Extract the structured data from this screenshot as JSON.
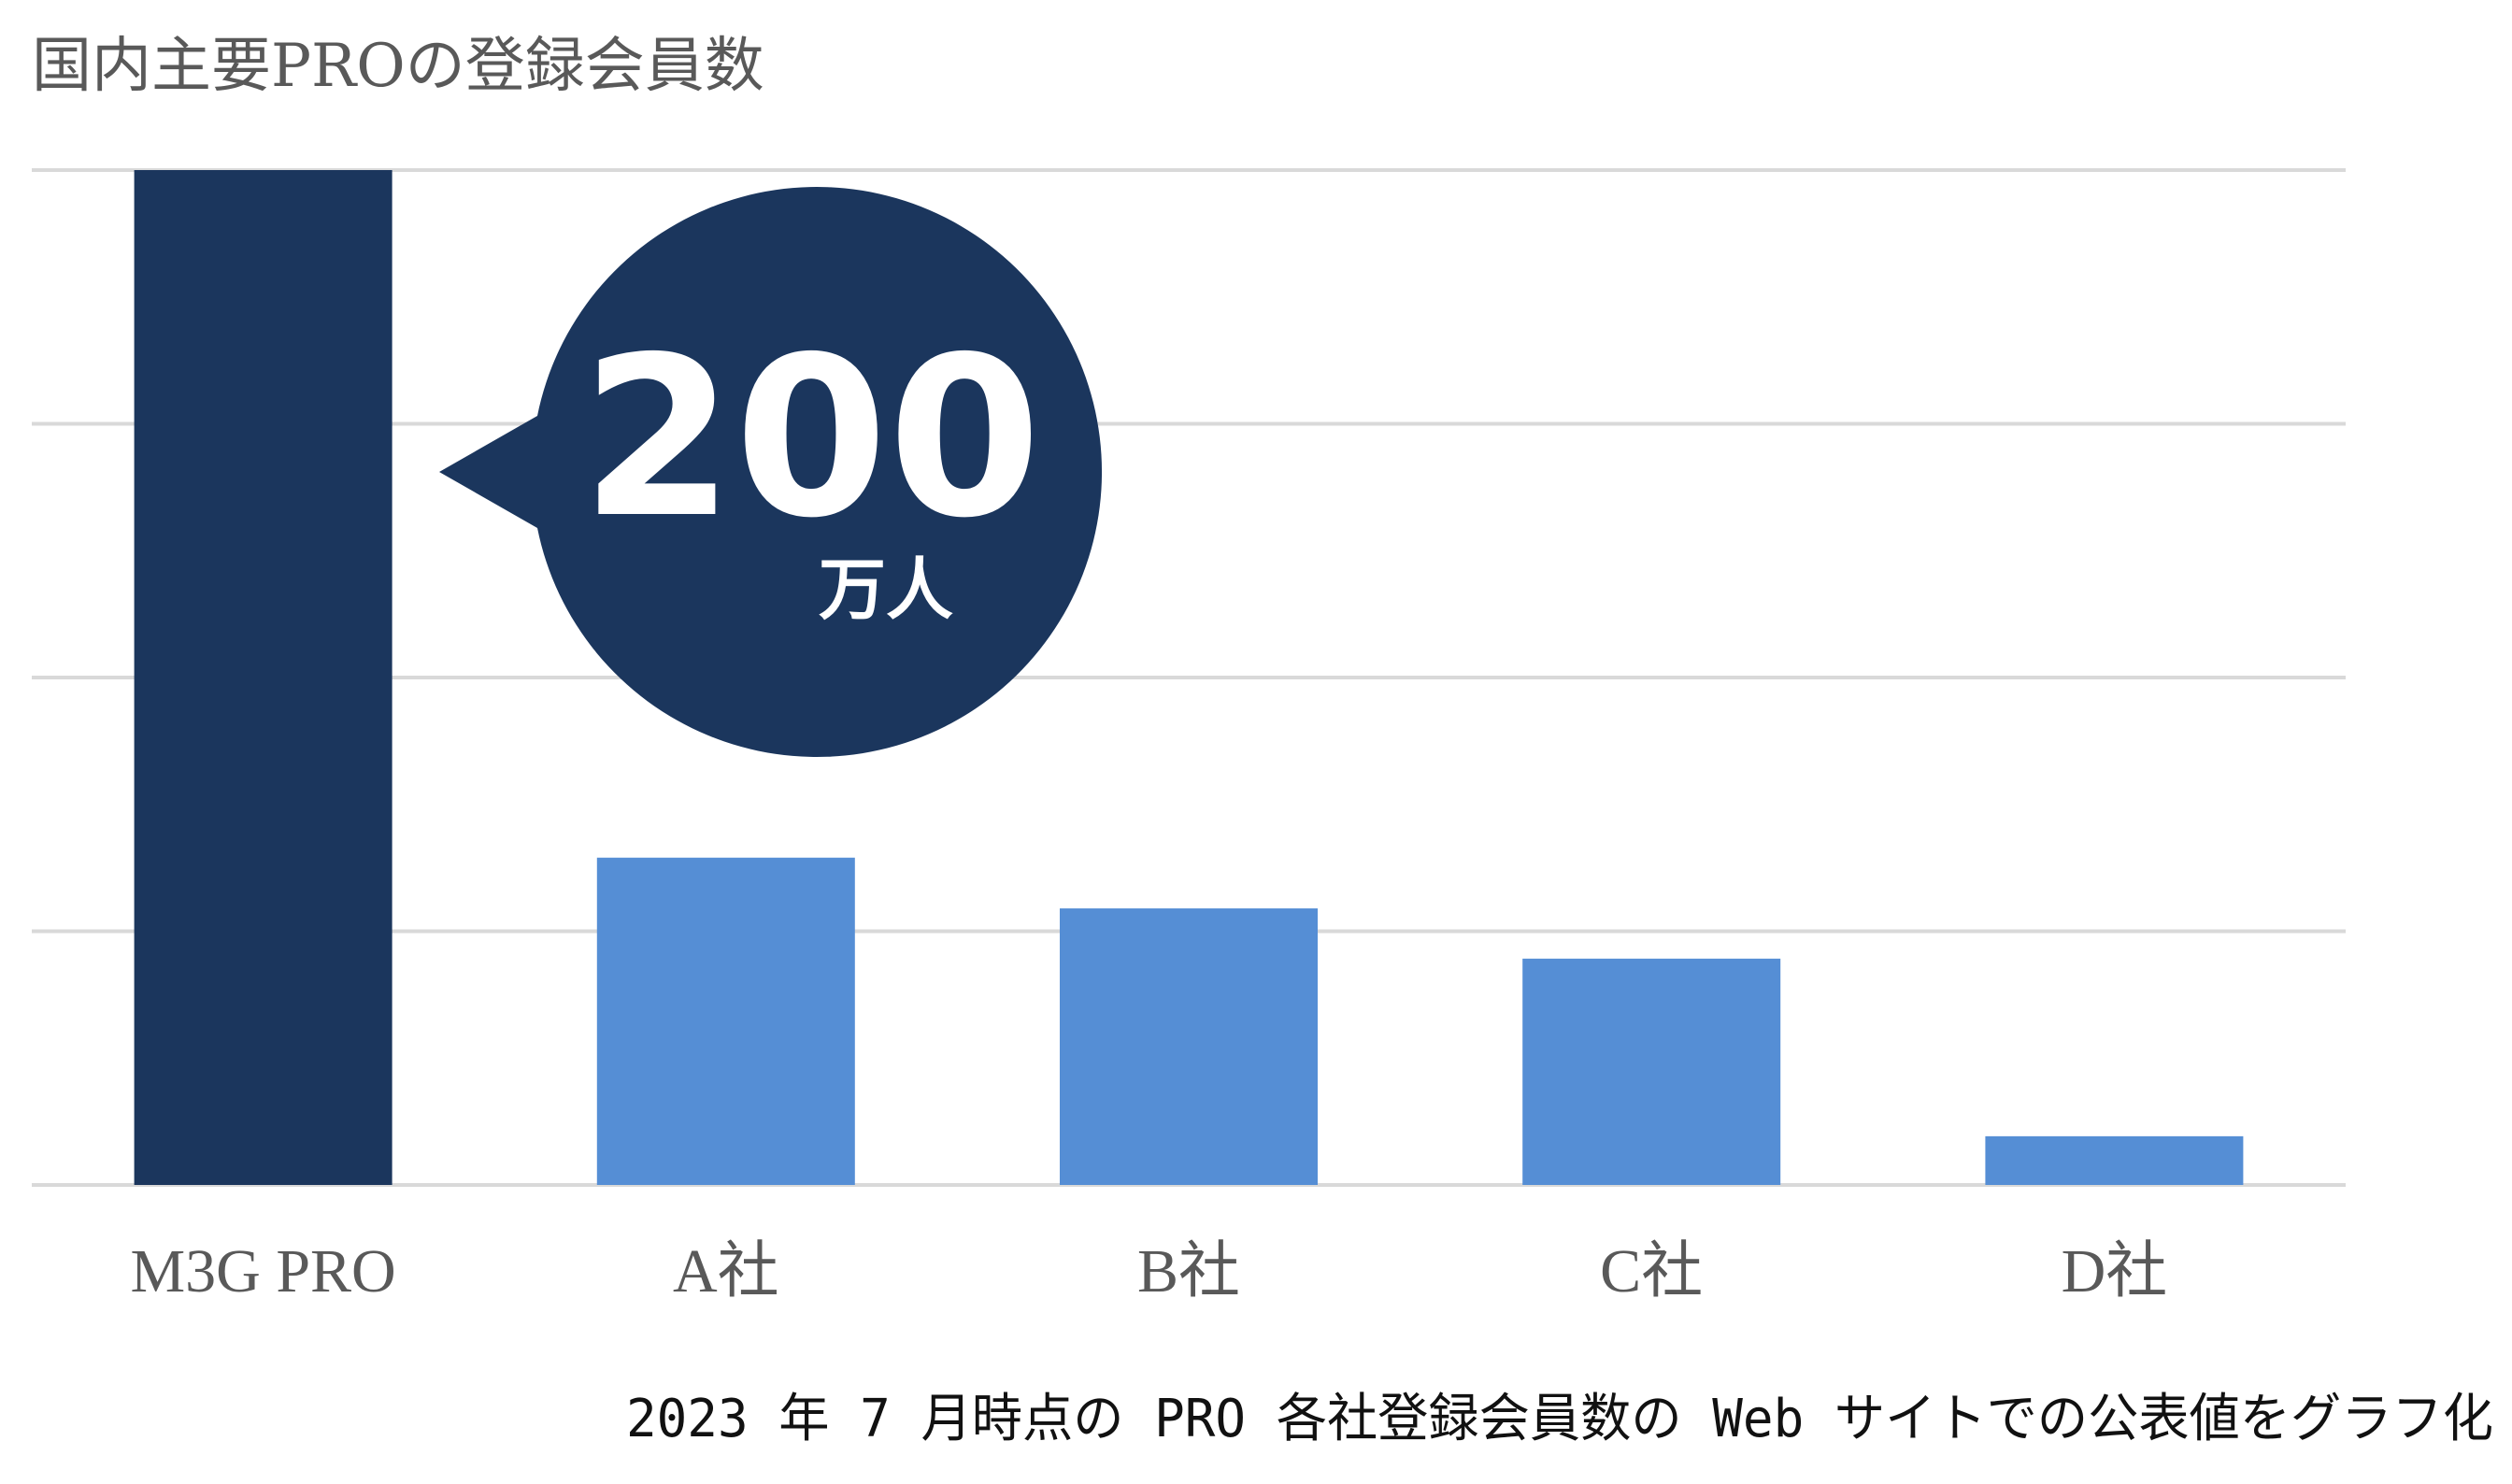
{
  "colors": {
    "highlight": "#1b365d",
    "bar": "#558ed5",
    "grid": "#d9d9d9",
    "text": "#595959",
    "callout_text": "#ffffff"
  },
  "chart_data": {
    "type": "bar",
    "title": "国内主要PROの登録会員数",
    "categories": [
      "M3G PRO",
      "A社",
      "B社",
      "C社",
      "D社"
    ],
    "values": [
      200,
      64.5,
      54.5,
      44.6,
      9.6
    ],
    "ylim": [
      0,
      200
    ],
    "grid": true,
    "gridline_count": 5,
    "yticks_shown": false,
    "legend": "none",
    "highlight_index": 0,
    "annotations": [
      {
        "category": "M3G PRO",
        "value_text": "200",
        "unit_text": "万人"
      }
    ],
    "footnote": "2023 年 7 月時点の PRO 各社登録会員数の Web サイトでの公表値をグラフ化"
  }
}
